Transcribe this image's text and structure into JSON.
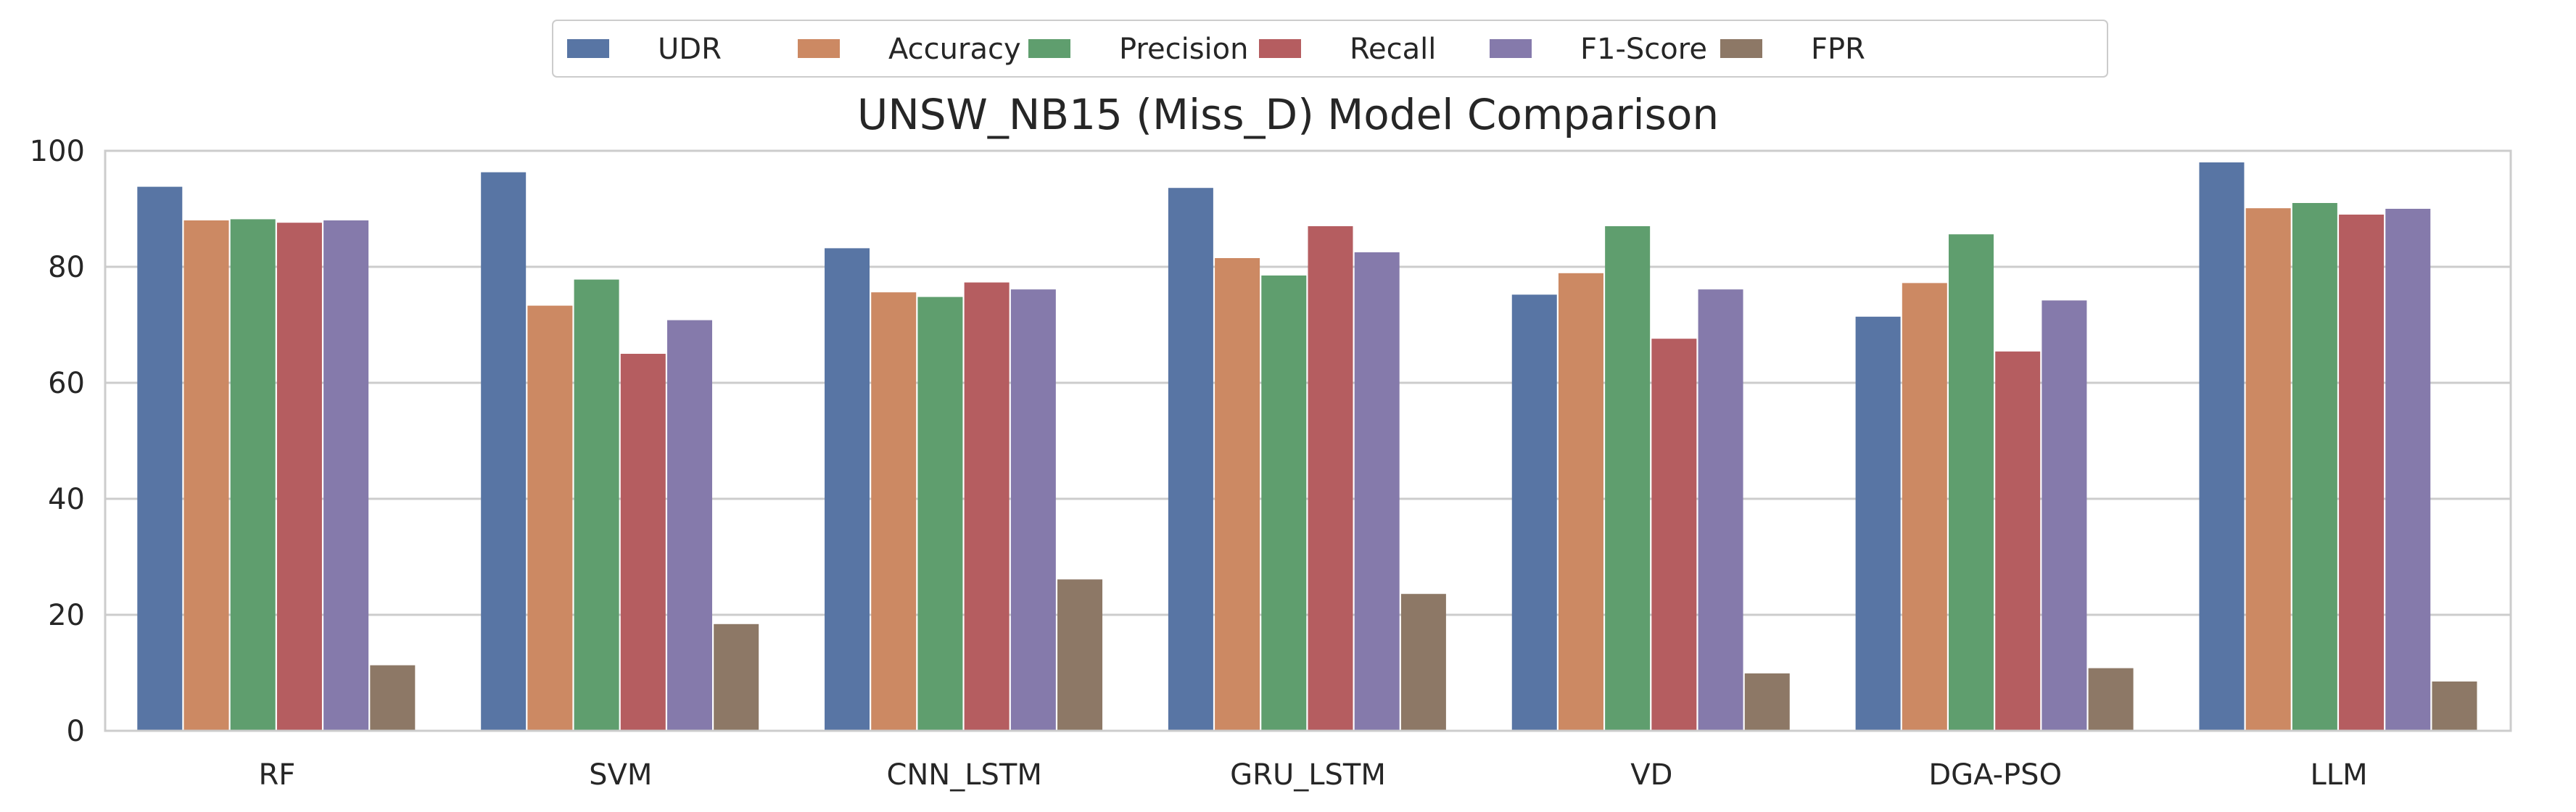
{
  "chart_data": {
    "type": "bar",
    "title": "UNSW_NB15 (Miss_D) Model Comparison",
    "xlabel": "",
    "ylabel": "",
    "ylim": [
      0,
      100
    ],
    "yticks": [
      0,
      20,
      40,
      60,
      80,
      100
    ],
    "grid": true,
    "legend_position": "top-center",
    "categories": [
      "RF",
      "SVM",
      "CNN_LSTM",
      "GRU_LSTM",
      "VD",
      "DGA-PSO",
      "LLM"
    ],
    "series": [
      {
        "name": "UDR",
        "color": "#5875a4",
        "values": [
          93.8,
          96.3,
          83.2,
          93.6,
          75.2,
          71.4,
          98.0
        ]
      },
      {
        "name": "Accuracy",
        "color": "#cc8963",
        "values": [
          88.0,
          73.3,
          75.6,
          81.5,
          78.9,
          77.2,
          90.1
        ]
      },
      {
        "name": "Precision",
        "color": "#5f9e6e",
        "values": [
          88.2,
          77.8,
          74.8,
          78.5,
          87.0,
          85.6,
          91.0
        ]
      },
      {
        "name": "Recall",
        "color": "#b55d60",
        "values": [
          87.6,
          65.0,
          77.3,
          87.0,
          67.6,
          65.4,
          89.0
        ]
      },
      {
        "name": "F1-Score",
        "color": "#857aab",
        "values": [
          88.0,
          70.8,
          76.1,
          82.5,
          76.1,
          74.2,
          90.0
        ]
      },
      {
        "name": "FPR",
        "color": "#8d7866",
        "values": [
          11.3,
          18.4,
          26.1,
          23.6,
          9.9,
          10.8,
          8.5
        ]
      }
    ]
  }
}
